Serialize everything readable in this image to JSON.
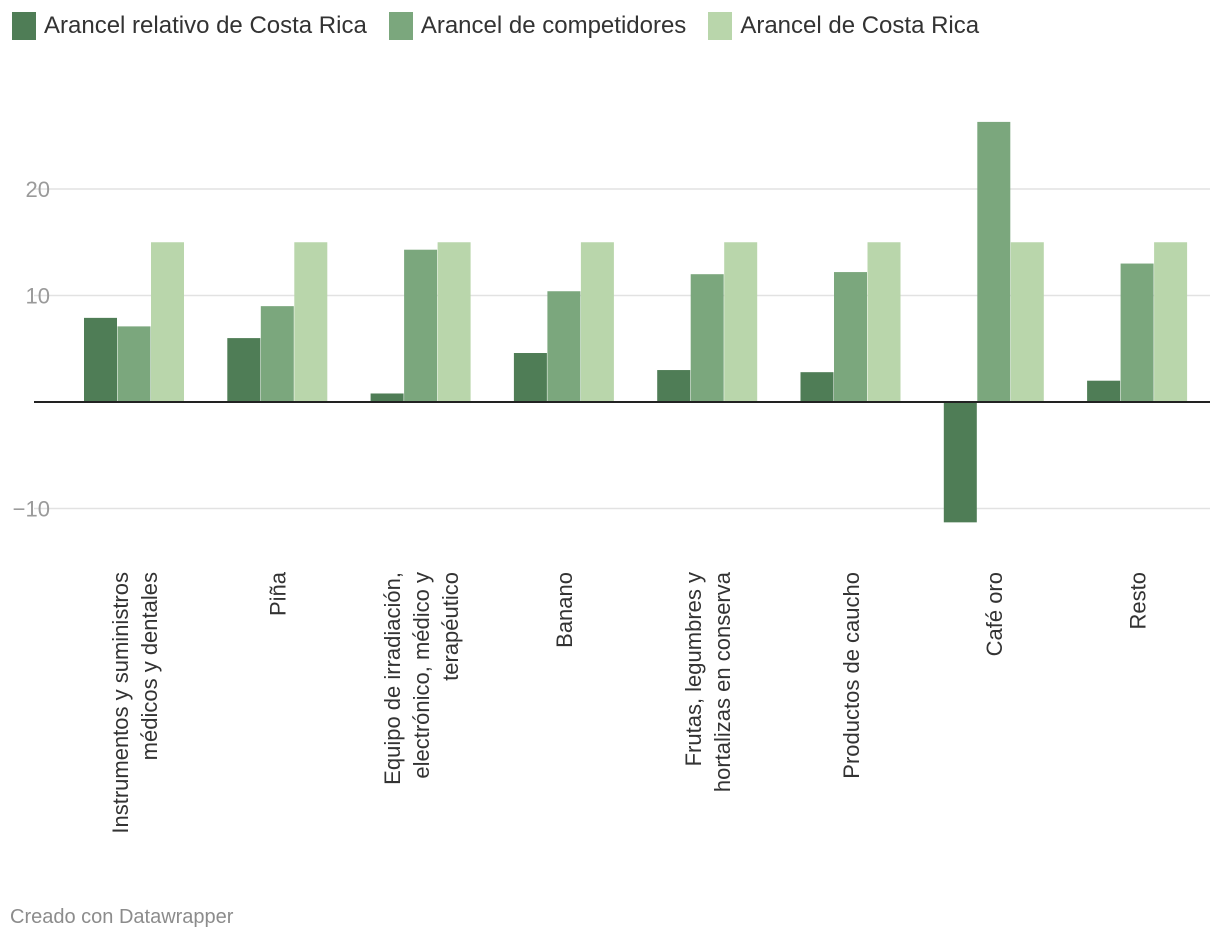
{
  "legend": [
    {
      "label": "Arancel relativo de Costa Rica",
      "color": "#4f7d56"
    },
    {
      "label": "Arancel de competidores",
      "color": "#7ba77d"
    },
    {
      "label": "Arancel de Costa Rica",
      "color": "#b9d6ab"
    }
  ],
  "footer": "Creado con Datawrapper",
  "chart_data": {
    "type": "bar",
    "title": "",
    "xlabel": "",
    "ylabel": "",
    "ylim": [
      -12,
      28
    ],
    "yticks": [
      -10,
      10,
      20
    ],
    "grid": true,
    "legend_position": "top-left",
    "categories": [
      [
        "Instrumentos y suministros",
        "médicos y dentales"
      ],
      [
        "Piña"
      ],
      [
        "Equipo de irradiación,",
        "electrónico, médico y",
        "terapéutico"
      ],
      [
        "Banano"
      ],
      [
        "Frutas, legumbres y",
        "hortalizas en conserva"
      ],
      [
        "Productos de caucho"
      ],
      [
        "Café oro"
      ],
      [
        "Resto"
      ]
    ],
    "series": [
      {
        "name": "Arancel relativo de Costa Rica",
        "color": "#4f7d56",
        "values": [
          7.9,
          6.0,
          0.8,
          4.6,
          3.0,
          2.8,
          -11.3,
          2.0
        ]
      },
      {
        "name": "Arancel de competidores",
        "color": "#7ba77d",
        "values": [
          7.1,
          9.0,
          14.3,
          10.4,
          12.0,
          12.2,
          26.3,
          13.0
        ]
      },
      {
        "name": "Arancel de Costa Rica",
        "color": "#b9d6ab",
        "values": [
          15.0,
          15.0,
          15.0,
          15.0,
          15.0,
          15.0,
          15.0,
          15.0
        ]
      }
    ]
  }
}
